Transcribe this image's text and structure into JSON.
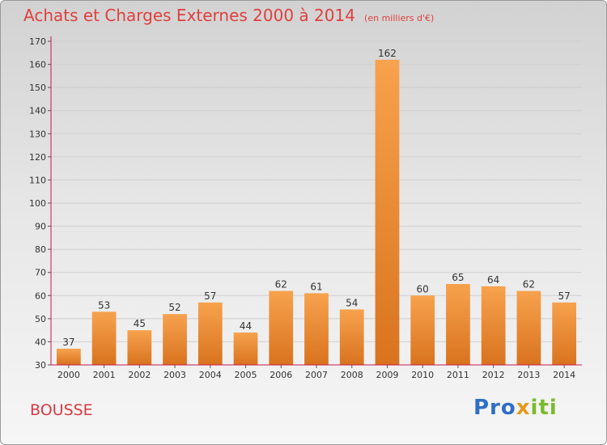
{
  "header": {
    "title": "Achats et Charges Externes 2000 à 2014",
    "unit": "(en milliers d'€)"
  },
  "footer": {
    "place": "BOUSSE",
    "logo": {
      "part1": "Pro",
      "part2": "x",
      "part3": "iti"
    }
  },
  "colors": {
    "title": "#e0403e",
    "bar_light": "#f7a24e",
    "bar_dark": "#d9731e",
    "axis": "#c8174a",
    "grid": "#cfcfcf"
  },
  "chart_data": {
    "type": "bar",
    "title": "Achats et Charges Externes 2000 à 2014",
    "subtitle": "(en milliers d'€)",
    "categories": [
      "2000",
      "2001",
      "2002",
      "2003",
      "2004",
      "2005",
      "2006",
      "2007",
      "2008",
      "2009",
      "2010",
      "2011",
      "2012",
      "2013",
      "2014"
    ],
    "values": [
      37,
      53,
      45,
      52,
      57,
      44,
      62,
      61,
      54,
      162,
      60,
      65,
      64,
      62,
      57
    ],
    "ylim": [
      30,
      170
    ],
    "yticks": [
      30,
      40,
      50,
      60,
      70,
      80,
      90,
      100,
      110,
      120,
      130,
      140,
      150,
      160,
      170
    ],
    "grid": true,
    "xlabel": "",
    "ylabel": ""
  }
}
